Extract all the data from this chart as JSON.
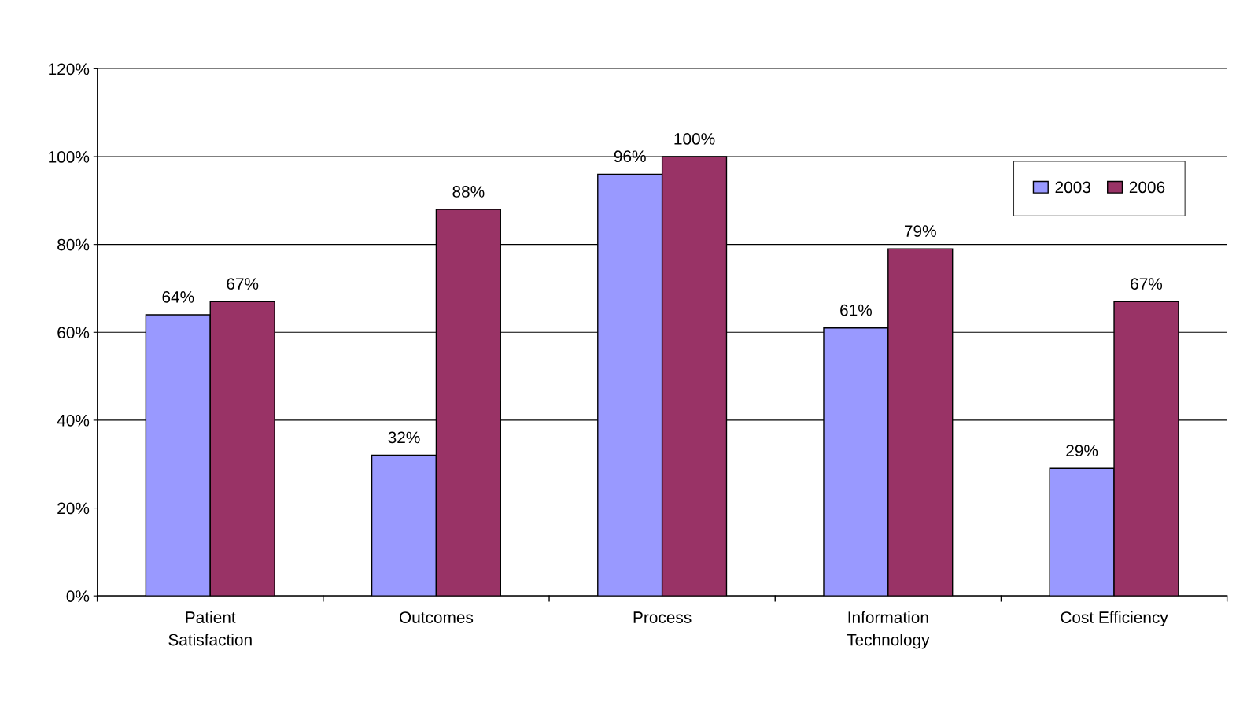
{
  "chart_data": {
    "type": "bar",
    "categories": [
      "Patient\nSatisfaction",
      "Outcomes",
      "Process",
      "Information\nTechnology",
      "Cost Efficiency"
    ],
    "series": [
      {
        "name": "2003",
        "color": "#9999ff",
        "values": [
          64,
          32,
          96,
          61,
          29
        ],
        "value_labels": [
          "64%",
          "32%",
          "96%",
          "61%",
          "29%"
        ]
      },
      {
        "name": "2006",
        "color": "#993366",
        "values": [
          67,
          88,
          100,
          79,
          67
        ],
        "value_labels": [
          "67%",
          "88%",
          "100%",
          "79%",
          "67%"
        ]
      }
    ],
    "ylim": [
      0,
      120
    ],
    "yticks": [
      {
        "value": 0,
        "label": "0%"
      },
      {
        "value": 20,
        "label": "20%"
      },
      {
        "value": 40,
        "label": "40%"
      },
      {
        "value": 60,
        "label": "60%"
      },
      {
        "value": 80,
        "label": "80%"
      },
      {
        "value": 100,
        "label": "100%"
      },
      {
        "value": 120,
        "label": "120%"
      }
    ],
    "grid": "y",
    "legend": "top right"
  }
}
